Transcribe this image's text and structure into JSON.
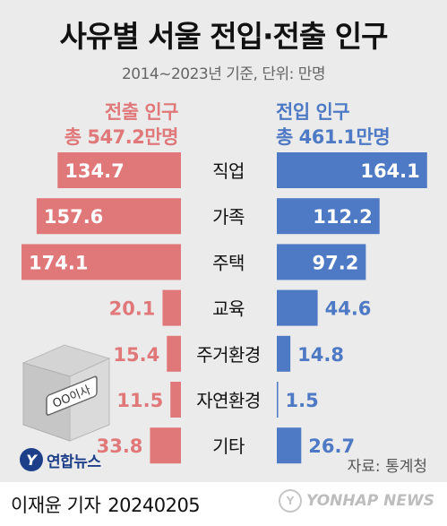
{
  "title": "사유별 서울 전입·전출 인구",
  "subtitle": "2014~2023년 기준, 단위: 만명",
  "left_header": {
    "label": "전출 인구",
    "total": "총 547.2만명"
  },
  "right_header": {
    "label": "전입 인구",
    "total": "총 461.1만명"
  },
  "colors": {
    "out": "#e0787a",
    "in": "#4e79c4"
  },
  "box_label": "OO이사",
  "source": "자료: 통계청",
  "logo_text": "연합뉴스",
  "byline": "이재윤 기자",
  "date": "20240205",
  "watermark": "YONHAP NEWS",
  "chart_data": {
    "type": "bar",
    "orientation": "horizontal-butterfly",
    "categories": [
      "직업",
      "가족",
      "주택",
      "교육",
      "주거환경",
      "자연환경",
      "기타"
    ],
    "series": [
      {
        "name": "전출 인구",
        "values": [
          134.7,
          157.6,
          174.1,
          20.1,
          15.4,
          11.5,
          33.8
        ]
      },
      {
        "name": "전입 인구",
        "values": [
          164.1,
          112.2,
          97.2,
          44.6,
          14.8,
          1.5,
          26.7
        ]
      }
    ],
    "value_labels_out": [
      "134.7",
      "157.6",
      "174.1",
      "20.1",
      "15.4",
      "11.5",
      "33.8"
    ],
    "value_labels_in": [
      "164.1",
      "112.2",
      "97.2",
      "44.6",
      "14.8",
      "1.5",
      "26.7"
    ],
    "unit": "만명"
  }
}
